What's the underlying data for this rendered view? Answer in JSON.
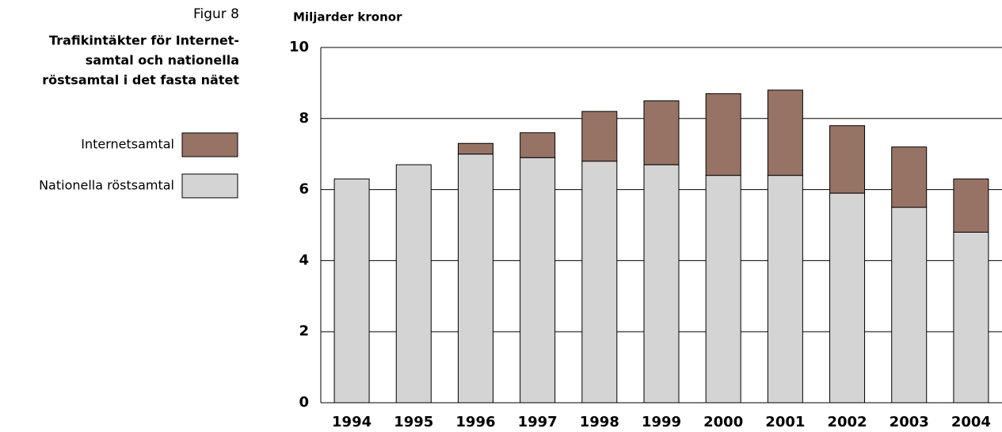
{
  "chart_data": {
    "type": "stacked_bar",
    "figure_label": "Figur 8",
    "title_lines": [
      "Trafikintäkter för Internet-",
      "samtal och nationella",
      "röstsamtal i det fasta nätet"
    ],
    "ylabel": "Miljarder kronor",
    "categories": [
      "1994",
      "1995",
      "1996",
      "1997",
      "1998",
      "1999",
      "2000",
      "2001",
      "2002",
      "2003",
      "2004"
    ],
    "series": [
      {
        "name": "Nationella röstsamtal",
        "color": "#d4d4d4",
        "values": [
          6.3,
          6.7,
          7.0,
          6.9,
          6.8,
          6.7,
          6.4,
          6.4,
          5.9,
          5.5,
          4.8
        ]
      },
      {
        "name": "Internetsamtal",
        "color": "#977366",
        "values": [
          0,
          0,
          0.3,
          0.7,
          1.4,
          1.8,
          2.3,
          2.4,
          1.9,
          1.7,
          1.5
        ]
      }
    ],
    "ylim": [
      0,
      10
    ],
    "yticks": [
      0,
      2,
      4,
      6,
      8,
      10
    ],
    "grid": true
  }
}
